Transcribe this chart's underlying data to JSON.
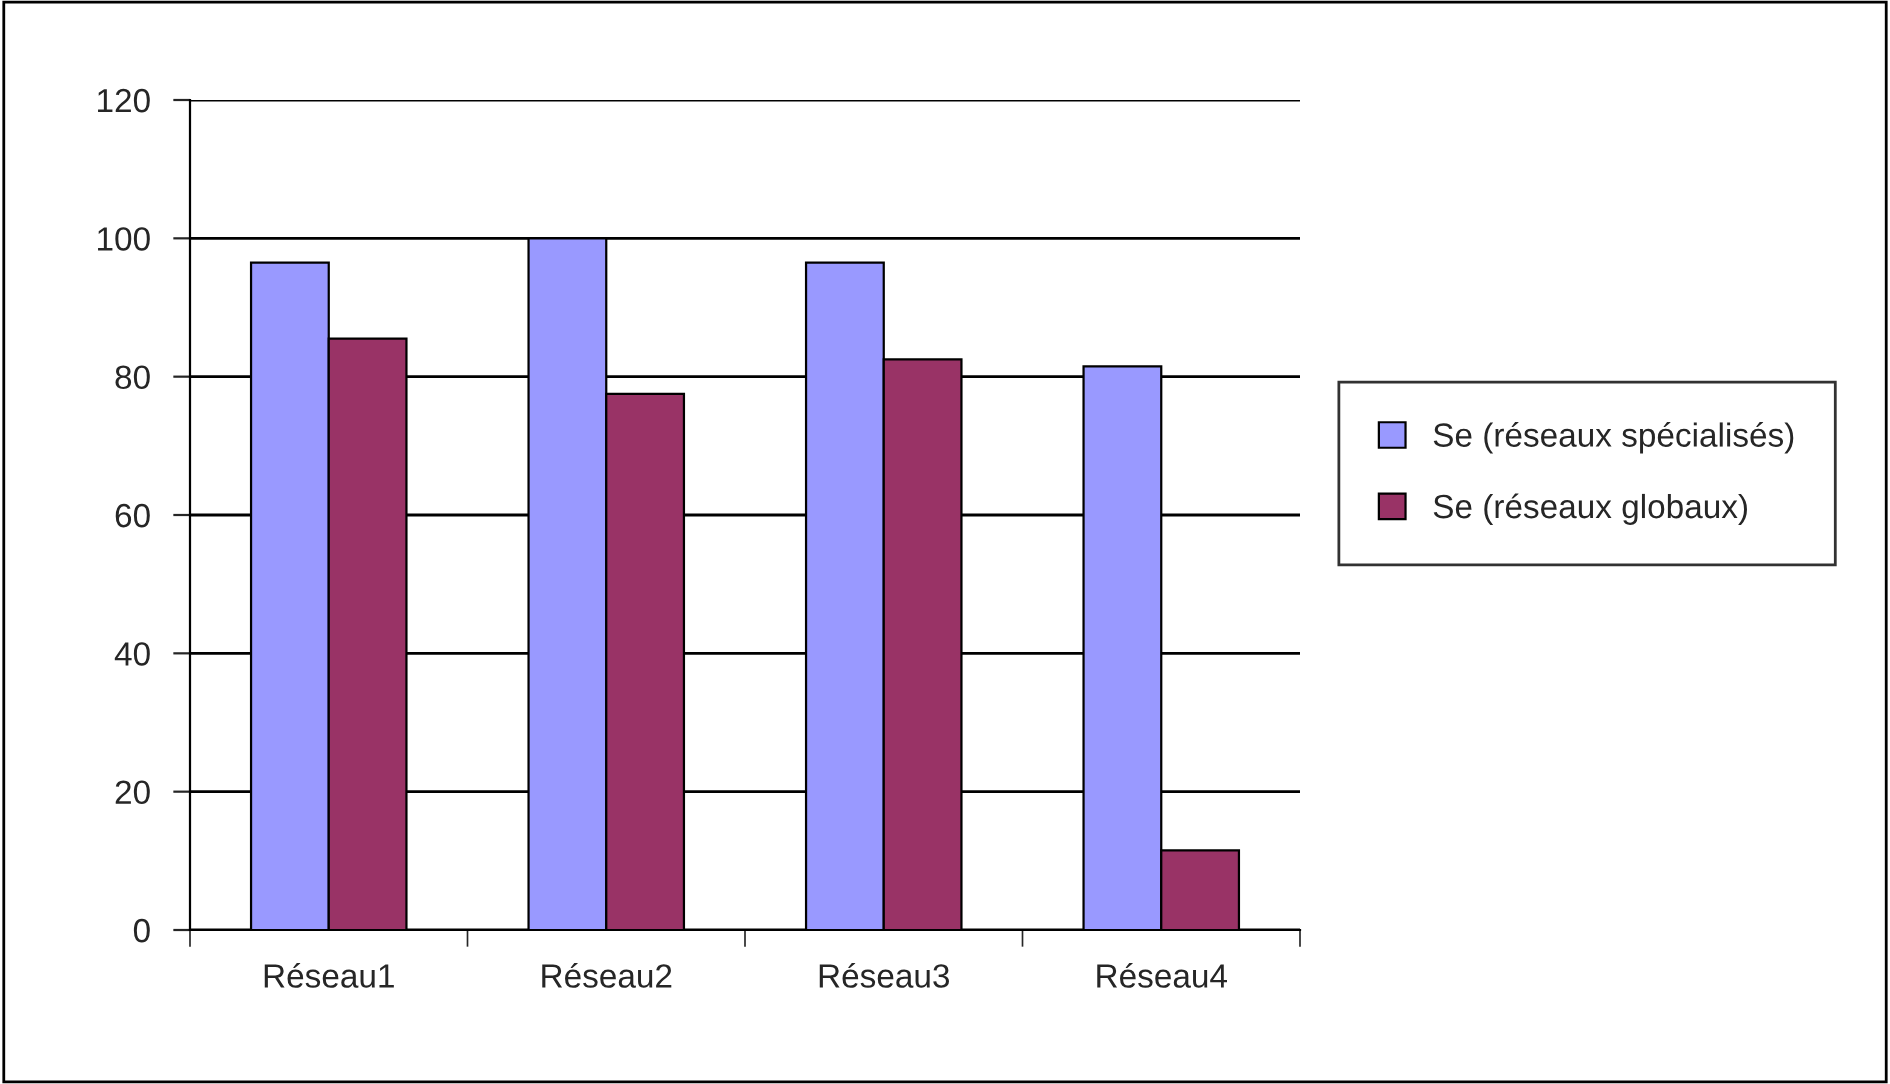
{
  "chart_data": {
    "type": "bar",
    "categories": [
      "Réseau1",
      "Réseau2",
      "Réseau3",
      "Réseau4"
    ],
    "series": [
      {
        "name": "Se (réseaux spécialisés)",
        "color": "#9999ff",
        "values": [
          96.5,
          100,
          96.5,
          81.5
        ]
      },
      {
        "name": "Se (réseaux globaux)",
        "color": "#993366",
        "values": [
          85.5,
          77.5,
          82.5,
          11.5
        ]
      }
    ],
    "ylim": [
      0,
      120
    ],
    "yticks": [
      0,
      20,
      40,
      60,
      80,
      100,
      120
    ],
    "grid": "y",
    "legend": "right"
  }
}
